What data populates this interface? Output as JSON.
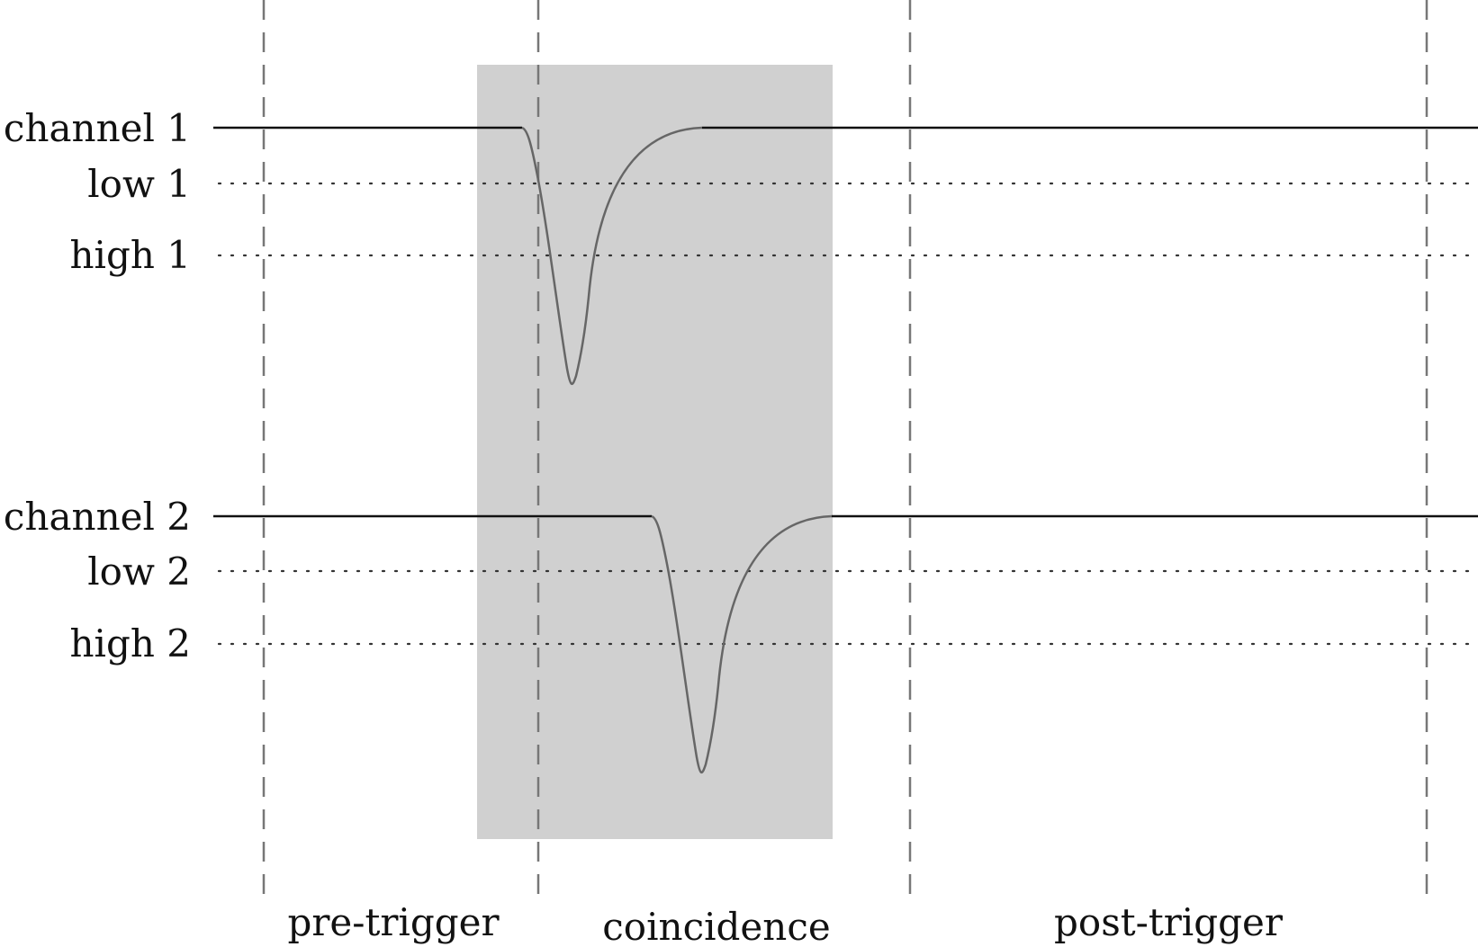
{
  "channels": [
    {
      "label": "channel 1",
      "low_label": "low 1",
      "high_label": "high 1"
    },
    {
      "label": "channel 2",
      "low_label": "low 2",
      "high_label": "high 2"
    }
  ],
  "regions": {
    "pre_trigger": "pre-trigger",
    "coincidence": "coincidence",
    "post_trigger": "post-trigger"
  },
  "colors": {
    "baseline": "#111111",
    "pulse": "#666666",
    "threshold": "#333333",
    "divider": "#777777",
    "coincidence_window": "#d0d0d0"
  }
}
